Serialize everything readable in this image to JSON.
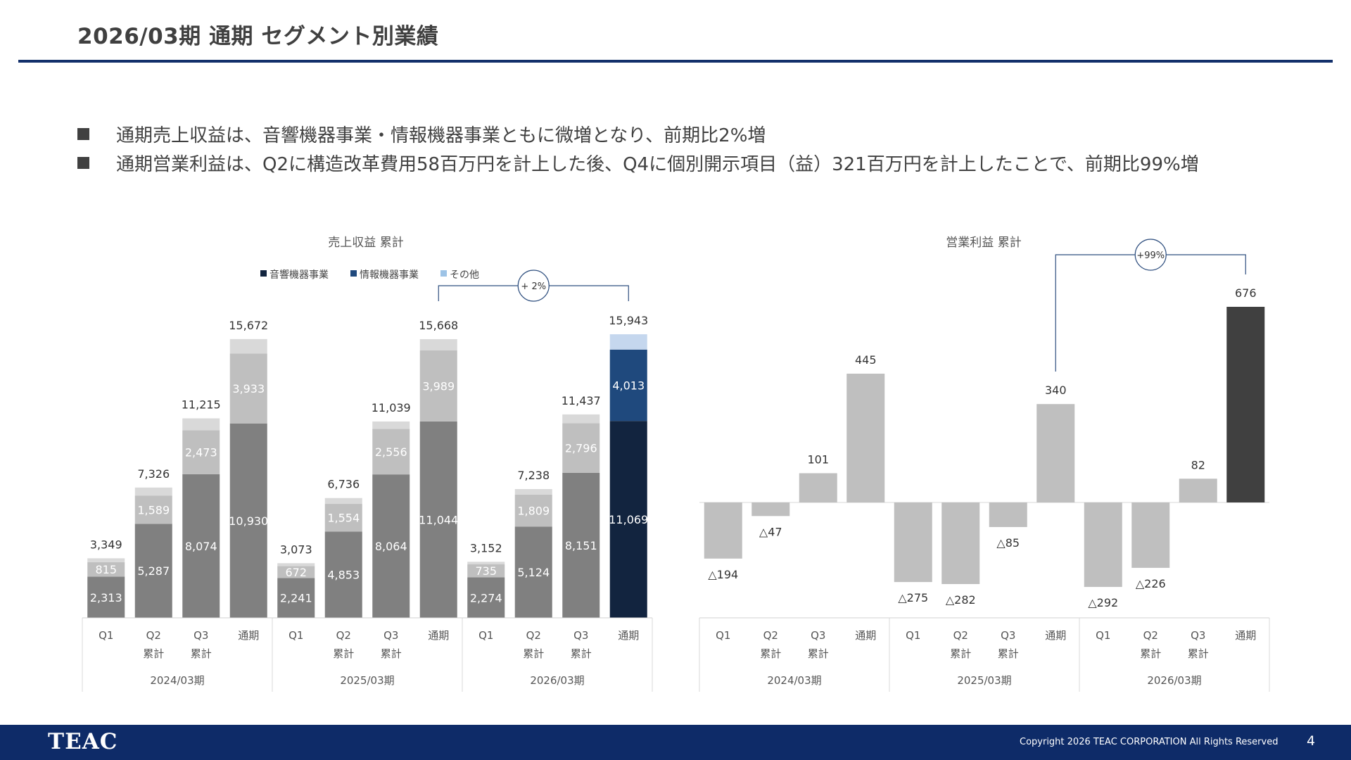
{
  "page": {
    "title": "2026/03期 通期 セグメント別業績",
    "bullets": [
      "通期売上収益は、音響機器事業・情報機器事業ともに微増となり、前期比2%増",
      "通期営業利益は、Q2に構造改革費用58百万円を計上した後、Q4に個別開示項目（益）321百万円を計上したことで、前期比99%増"
    ],
    "footer": {
      "logo": "TEAC",
      "copyright": "Copyright 2026 TEAC CORPORATION All Rights Reserved",
      "page_number": "4"
    }
  },
  "colors": {
    "audio": "#808080",
    "info": "#bfbfbf",
    "other": "#d9d9d9",
    "audio_hl": "#12243f",
    "info_hl": "#1f497d",
    "other_hl": "#c5d7ee",
    "op": "#bfbfbf",
    "op_hl": "#404040",
    "rule": "#13306b",
    "footer": "#0e2b68"
  },
  "chart_data": [
    {
      "type": "bar",
      "stacked": true,
      "title": "売上収益 累計",
      "legend": [
        "音響機器事業",
        "情報機器事業",
        "その他"
      ],
      "legend_colors": [
        "#12243f",
        "#1f497d",
        "#9dc3e6"
      ],
      "legend_position": "top",
      "periods": [
        {
          "label": "2024/03期",
          "categories": [
            "Q1",
            "Q2\n累計",
            "Q3\n累計",
            "通期"
          ]
        },
        {
          "label": "2025/03期",
          "categories": [
            "Q1",
            "Q2\n累計",
            "Q3\n累計",
            "通期"
          ]
        },
        {
          "label": "2026/03期",
          "categories": [
            "Q1",
            "Q2\n累計",
            "Q3\n累計",
            "通期"
          ]
        }
      ],
      "series": [
        {
          "name": "音響機器事業",
          "values": [
            2313,
            5287,
            8074,
            10930,
            2241,
            4853,
            8064,
            11044,
            2274,
            5124,
            8151,
            11069
          ]
        },
        {
          "name": "情報機器事業",
          "values": [
            815,
            1589,
            2473,
            3933,
            672,
            1554,
            2556,
            3989,
            735,
            1809,
            2796,
            4013
          ]
        },
        {
          "name": "その他",
          "values": [
            221,
            450,
            668,
            809,
            160,
            329,
            419,
            635,
            143,
            305,
            490,
            861
          ]
        }
      ],
      "totals": [
        3349,
        7326,
        11215,
        15672,
        3073,
        6736,
        11039,
        15668,
        3152,
        7238,
        11437,
        15943
      ],
      "segment_labels": [
        [
          "2,313",
          "815",
          ""
        ],
        [
          "5,287",
          "1,589",
          ""
        ],
        [
          "8,074",
          "2,473",
          ""
        ],
        [
          "10,930",
          "3,933",
          ""
        ],
        [
          "2,241",
          "672",
          ""
        ],
        [
          "4,853",
          "1,554",
          ""
        ],
        [
          "8,064",
          "2,556",
          ""
        ],
        [
          "11,044",
          "3,989",
          ""
        ],
        [
          "2,274",
          "735",
          ""
        ],
        [
          "5,124",
          "1,809",
          ""
        ],
        [
          "8,151",
          "2,796",
          ""
        ],
        [
          "11,069",
          "4,013",
          ""
        ]
      ],
      "total_labels": [
        "3,349",
        "7,326",
        "11,215",
        "15,672",
        "3,073",
        "6,736",
        "11,039",
        "15,668",
        "3,152",
        "7,238",
        "11,437",
        "15,943"
      ],
      "highlight_index": 11,
      "annotation": {
        "text": "+ 2%",
        "from": 7,
        "to": 11
      },
      "ylim": [
        0,
        17000
      ]
    },
    {
      "type": "bar",
      "title": "営業利益 累計",
      "periods": [
        {
          "label": "2024/03期",
          "categories": [
            "Q1",
            "Q2\n累計",
            "Q3\n累計",
            "通期"
          ]
        },
        {
          "label": "2025/03期",
          "categories": [
            "Q1",
            "Q2\n累計",
            "Q3\n累計",
            "通期"
          ]
        },
        {
          "label": "2026/03期",
          "categories": [
            "Q1",
            "Q2\n累計",
            "Q3\n累計",
            "通期"
          ]
        }
      ],
      "values": [
        -194,
        -47,
        101,
        445,
        -275,
        -282,
        -85,
        340,
        -292,
        -226,
        82,
        676
      ],
      "labels": [
        "△194",
        "△47",
        "101",
        "445",
        "△275",
        "△282",
        "△85",
        "340",
        "△292",
        "△226",
        "82",
        "676"
      ],
      "highlight_index": 11,
      "annotation": {
        "text": "+99%",
        "from": 7,
        "to": 11
      },
      "ylim": [
        -400,
        700
      ]
    }
  ]
}
